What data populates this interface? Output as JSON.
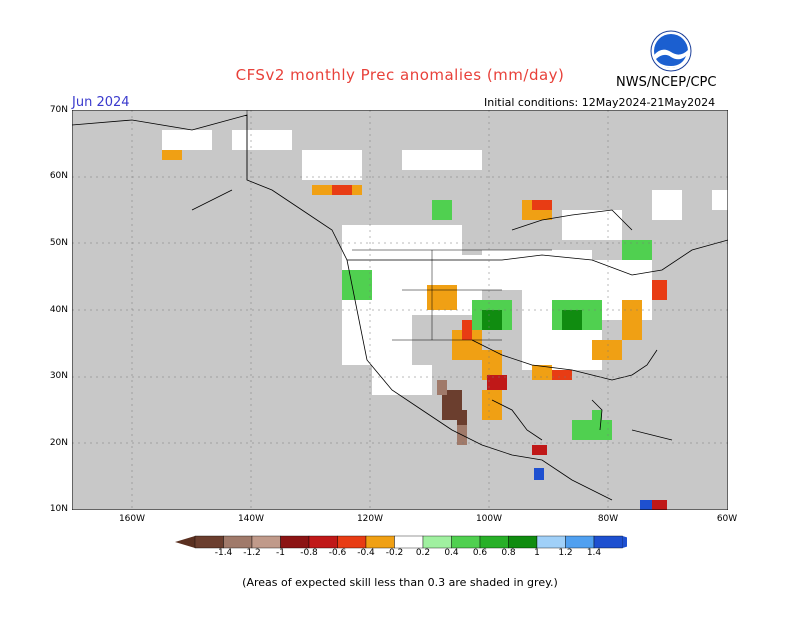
{
  "header": {
    "title": "CFSv2 monthly Prec anomalies (mm/day)",
    "month": "Jun 2024",
    "initial_conditions": "Initial conditions: 12May2024-21May2024",
    "agency": "NWS/NCEP/CPC"
  },
  "axes": {
    "lat_labels": [
      "70N",
      "60N",
      "50N",
      "40N",
      "30N",
      "20N",
      "10N"
    ],
    "lon_labels": [
      "160W",
      "140W",
      "120W",
      "100W",
      "80W",
      "60W"
    ]
  },
  "colorbar": {
    "tick_labels": [
      "-1.4",
      "-1.2",
      "-1",
      "-0.8",
      "-0.6",
      "-0.4",
      "-0.2",
      "0.2",
      "0.4",
      "0.6",
      "0.8",
      "1",
      "1.2",
      "1.4"
    ],
    "colors": [
      "#6b3e2e",
      "#a07a6a",
      "#c09a8a",
      "#8c1414",
      "#c01818",
      "#e83c14",
      "#f0a014",
      "#ffffff",
      "#a0f0a0",
      "#50d050",
      "#28b028",
      "#108c10",
      "#a0d0f8",
      "#50a0f0",
      "#1e50d0"
    ],
    "end_colors": [
      "#5a3020",
      "#1e50d0"
    ]
  },
  "map": {
    "land_color": "#c8c8c8",
    "ocean_color": "#c8c8c8",
    "lat_range": [
      10,
      70
    ],
    "lon_range": [
      -170,
      -60
    ]
  },
  "footnote": "(Areas of expected skill less than 0.3 are shaded in grey.)"
}
